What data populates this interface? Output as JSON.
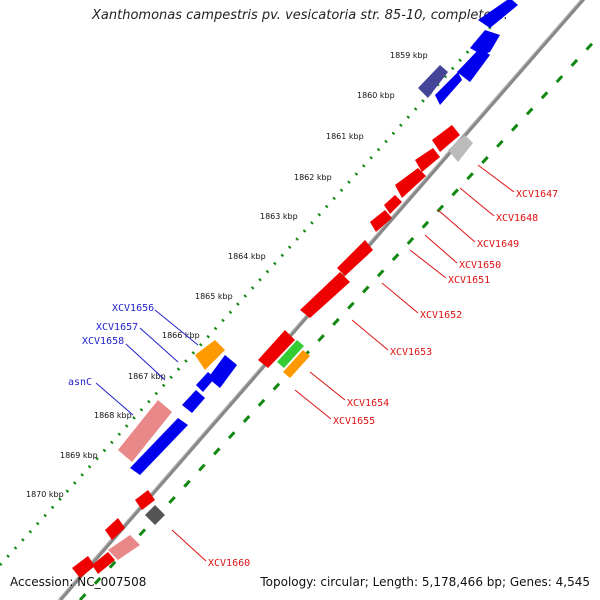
{
  "title": "Xanthomonas campestris pv. vesicatoria str. 85-10, complete ...",
  "footer": {
    "accession": "Accession: NC_007508",
    "topology": "Topology: circular; Length: 5,178,466 bp; Genes: 4,545"
  },
  "ticks": [
    "1859 kbp",
    "1860 kbp",
    "1861 kbp",
    "1862 kbp",
    "1863 kbp",
    "1864 kbp",
    "1865 kbp",
    "1866 kbp",
    "1867 kbp",
    "1868 kbp",
    "1869 kbp",
    "1870 kbp"
  ],
  "genes_outer_labels": [
    "XCV1656",
    "XCV1657",
    "XCV1658",
    "asnC"
  ],
  "genes_inner_labels": [
    "XCV1647",
    "XCV1648",
    "XCV1649",
    "XCV1650",
    "XCV1651",
    "XCV1652",
    "XCV1653",
    "XCV1654",
    "XCV1655",
    "XCV1660"
  ],
  "colors": {
    "forward_strand": "#0000ee",
    "reverse_strand": "#ee0000",
    "gene_label_forward": "#2222cc",
    "gene_label_reverse": "#dd1111",
    "backbone": "#888888",
    "dotted_ring": "#118811",
    "pink": "#e88888",
    "orange": "#ff9900",
    "green": "#33cc33",
    "purple": "#444499",
    "gray": "#555555",
    "light_gray": "#bbbbbb"
  }
}
